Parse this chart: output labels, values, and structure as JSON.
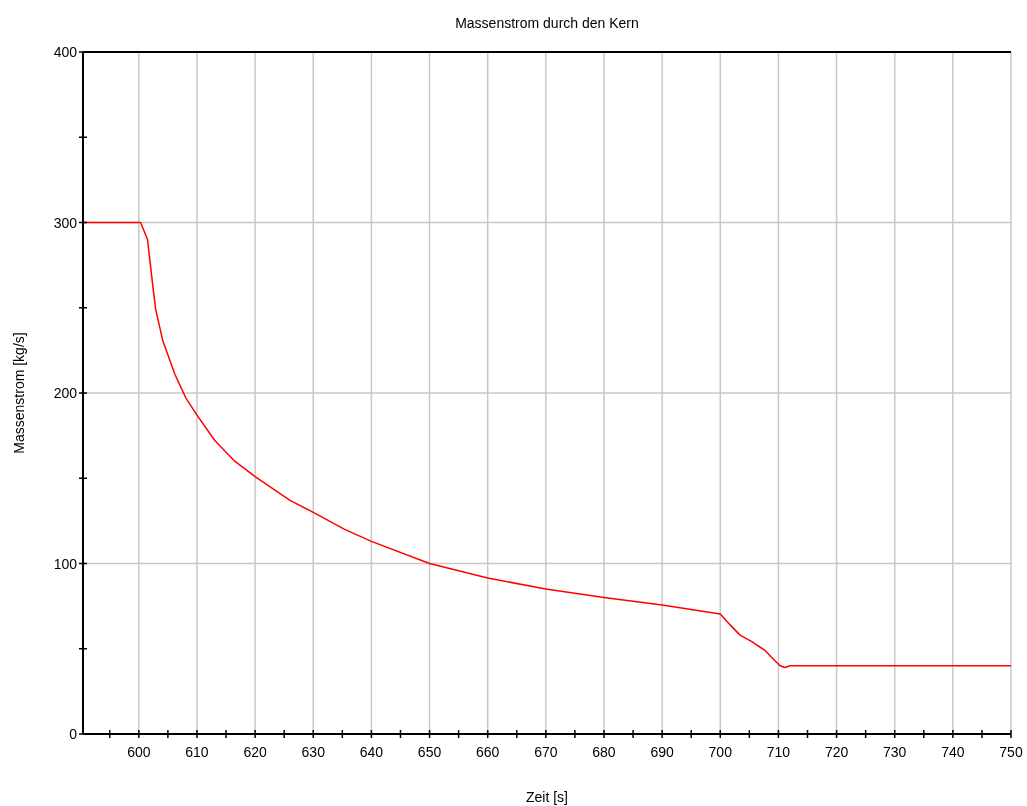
{
  "chart_data": {
    "type": "line",
    "title": "Massenstrom durch den Kern",
    "xlabel": "Zeit [s]",
    "ylabel": "Massenstrom [kg/s]",
    "xlim": [
      590.4,
      750
    ],
    "ylim": [
      0,
      400
    ],
    "xticks": [
      {
        "value": 595,
        "label": null
      },
      600,
      {
        "value": 605,
        "label": null
      },
      610,
      {
        "value": 615,
        "label": null
      },
      620,
      {
        "value": 625,
        "label": null
      },
      630,
      {
        "value": 635,
        "label": null
      },
      640,
      {
        "value": 645,
        "label": null
      },
      650,
      {
        "value": 655,
        "label": null
      },
      660,
      {
        "value": 665,
        "label": null
      },
      670,
      {
        "value": 675,
        "label": null
      },
      680,
      {
        "value": 685,
        "label": null
      },
      690,
      {
        "value": 695,
        "label": null
      },
      700,
      {
        "value": 705,
        "label": null
      },
      710,
      {
        "value": 715,
        "label": null
      },
      720,
      {
        "value": 725,
        "label": null
      },
      730,
      {
        "value": 735,
        "label": null
      },
      740,
      {
        "value": 745,
        "label": null
      },
      750
    ],
    "yticks": [
      0,
      {
        "value": 50,
        "label": null
      },
      100,
      {
        "value": 150,
        "label": null
      },
      200,
      {
        "value": 250,
        "label": null
      },
      300,
      {
        "value": 350,
        "label": null
      },
      400
    ],
    "grid": true,
    "marker": "none",
    "line_style": "solid",
    "series": [
      {
        "color": "#ff0000",
        "x": [
          590.4,
          600,
          600.3,
          601.5,
          602.4,
          602.9,
          604.1,
          606.2,
          608.1,
          610,
          613.1,
          616.5,
          620,
          626,
          630,
          635.4,
          640,
          650,
          660,
          670,
          680,
          690,
          700,
          701.7,
          703.4,
          705.5,
          707.7,
          709.4,
          710.3,
          711.1,
          712,
          720,
          730,
          740,
          750
        ],
        "values": [
          300,
          300,
          300,
          290,
          263,
          249,
          231,
          211,
          197,
          187,
          172,
          160,
          151,
          137,
          130,
          120,
          113,
          100,
          91.5,
          85,
          80,
          75.7,
          70.4,
          64,
          58,
          54,
          49,
          43,
          40,
          39,
          40,
          40,
          40,
          40,
          40
        ]
      }
    ]
  }
}
